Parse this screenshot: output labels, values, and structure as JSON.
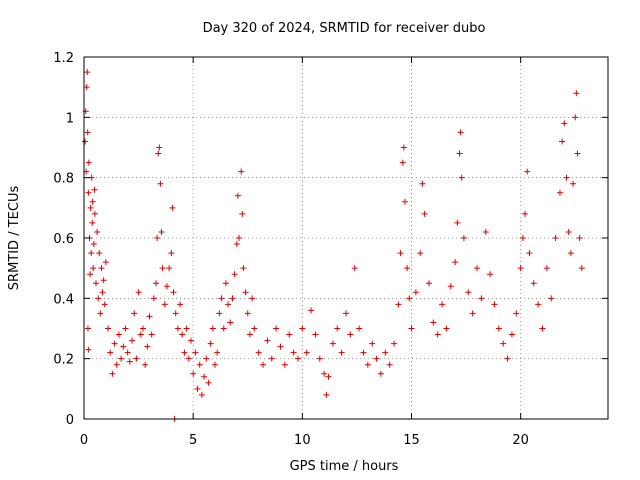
{
  "chart_data": {
    "type": "scatter",
    "title": "Day 320 of 2024, SRMTID for receiver dubo",
    "xlabel": "GPS time / hours",
    "ylabel": "SRMTID / TECUs",
    "xlim": [
      0,
      24
    ],
    "ylim": [
      0,
      1.2
    ],
    "xticks": [
      0,
      5,
      10,
      15,
      20
    ],
    "yticks": [
      0,
      0.2,
      0.4,
      0.6,
      0.8,
      1,
      1.2
    ],
    "xtick_labels": [
      "0",
      "5",
      "10",
      "15",
      "20"
    ],
    "ytick_labels": [
      "0",
      "0.2",
      "0.4",
      "0.6",
      "0.8",
      "1",
      "1.2"
    ],
    "grid": true,
    "marker": "+",
    "series_color": "#e00000",
    "series": [
      {
        "name": "SRMTID",
        "points": [
          [
            0.05,
            0.92
          ],
          [
            0.08,
            1.02
          ],
          [
            0.1,
            0.82
          ],
          [
            0.12,
            1.1
          ],
          [
            0.15,
            1.15
          ],
          [
            0.17,
            0.95
          ],
          [
            0.2,
            0.75
          ],
          [
            0.22,
            0.85
          ],
          [
            0.25,
            0.6
          ],
          [
            0.28,
            0.48
          ],
          [
            0.3,
            0.7
          ],
          [
            0.33,
            0.55
          ],
          [
            0.35,
            0.8
          ],
          [
            0.38,
            0.65
          ],
          [
            0.4,
            0.72
          ],
          [
            0.42,
            0.5
          ],
          [
            0.45,
            0.58
          ],
          [
            0.48,
            0.76
          ],
          [
            0.5,
            0.68
          ],
          [
            0.55,
            0.45
          ],
          [
            0.6,
            0.62
          ],
          [
            0.65,
            0.4
          ],
          [
            0.7,
            0.55
          ],
          [
            0.75,
            0.35
          ],
          [
            0.8,
            0.5
          ],
          [
            0.85,
            0.42
          ],
          [
            0.9,
            0.46
          ],
          [
            0.95,
            0.38
          ],
          [
            1.0,
            0.52
          ],
          [
            0.2,
            0.23
          ],
          [
            0.18,
            0.3
          ],
          [
            1.1,
            0.3
          ],
          [
            1.2,
            0.22
          ],
          [
            1.3,
            0.15
          ],
          [
            1.4,
            0.25
          ],
          [
            1.5,
            0.18
          ],
          [
            1.6,
            0.28
          ],
          [
            1.7,
            0.2
          ],
          [
            1.8,
            0.24
          ],
          [
            1.9,
            0.3
          ],
          [
            2.0,
            0.22
          ],
          [
            2.1,
            0.19
          ],
          [
            2.2,
            0.26
          ],
          [
            2.3,
            0.35
          ],
          [
            2.4,
            0.2
          ],
          [
            2.5,
            0.42
          ],
          [
            2.6,
            0.28
          ],
          [
            2.7,
            0.3
          ],
          [
            2.8,
            0.18
          ],
          [
            2.9,
            0.24
          ],
          [
            3.0,
            0.34
          ],
          [
            3.1,
            0.28
          ],
          [
            3.2,
            0.4
          ],
          [
            3.3,
            0.45
          ],
          [
            3.35,
            0.6
          ],
          [
            3.4,
            0.88
          ],
          [
            3.45,
            0.9
          ],
          [
            3.5,
            0.78
          ],
          [
            3.55,
            0.62
          ],
          [
            3.6,
            0.5
          ],
          [
            3.7,
            0.38
          ],
          [
            3.8,
            0.44
          ],
          [
            3.9,
            0.5
          ],
          [
            4.0,
            0.55
          ],
          [
            4.05,
            0.7
          ],
          [
            4.1,
            0.42
          ],
          [
            4.15,
            0.0
          ],
          [
            4.2,
            0.35
          ],
          [
            4.3,
            0.3
          ],
          [
            4.4,
            0.38
          ],
          [
            4.5,
            0.28
          ],
          [
            4.6,
            0.22
          ],
          [
            4.7,
            0.3
          ],
          [
            4.8,
            0.2
          ],
          [
            4.9,
            0.26
          ],
          [
            5.0,
            0.15
          ],
          [
            5.1,
            0.22
          ],
          [
            5.2,
            0.1
          ],
          [
            5.3,
            0.18
          ],
          [
            5.4,
            0.08
          ],
          [
            5.5,
            0.14
          ],
          [
            5.6,
            0.2
          ],
          [
            5.7,
            0.12
          ],
          [
            5.8,
            0.25
          ],
          [
            5.9,
            0.3
          ],
          [
            6.0,
            0.18
          ],
          [
            6.1,
            0.22
          ],
          [
            6.2,
            0.35
          ],
          [
            6.3,
            0.4
          ],
          [
            6.4,
            0.3
          ],
          [
            6.5,
            0.45
          ],
          [
            6.6,
            0.38
          ],
          [
            6.7,
            0.32
          ],
          [
            6.8,
            0.4
          ],
          [
            6.9,
            0.48
          ],
          [
            7.0,
            0.58
          ],
          [
            7.05,
            0.74
          ],
          [
            7.1,
            0.6
          ],
          [
            7.2,
            0.82
          ],
          [
            7.25,
            0.68
          ],
          [
            7.3,
            0.5
          ],
          [
            7.4,
            0.42
          ],
          [
            7.5,
            0.35
          ],
          [
            7.6,
            0.28
          ],
          [
            7.7,
            0.4
          ],
          [
            7.8,
            0.3
          ],
          [
            8.0,
            0.22
          ],
          [
            8.2,
            0.18
          ],
          [
            8.4,
            0.26
          ],
          [
            8.6,
            0.2
          ],
          [
            8.8,
            0.3
          ],
          [
            9.0,
            0.24
          ],
          [
            9.2,
            0.18
          ],
          [
            9.4,
            0.28
          ],
          [
            9.6,
            0.22
          ],
          [
            9.8,
            0.2
          ],
          [
            10.0,
            0.3
          ],
          [
            10.2,
            0.22
          ],
          [
            10.4,
            0.36
          ],
          [
            10.6,
            0.28
          ],
          [
            10.8,
            0.2
          ],
          [
            11.0,
            0.15
          ],
          [
            11.1,
            0.08
          ],
          [
            11.2,
            0.14
          ],
          [
            11.4,
            0.25
          ],
          [
            11.6,
            0.3
          ],
          [
            11.8,
            0.22
          ],
          [
            12.0,
            0.35
          ],
          [
            12.2,
            0.28
          ],
          [
            12.4,
            0.5
          ],
          [
            12.6,
            0.3
          ],
          [
            12.8,
            0.22
          ],
          [
            13.0,
            0.18
          ],
          [
            13.2,
            0.25
          ],
          [
            13.4,
            0.2
          ],
          [
            13.6,
            0.15
          ],
          [
            13.8,
            0.22
          ],
          [
            14.0,
            0.18
          ],
          [
            14.2,
            0.25
          ],
          [
            14.4,
            0.38
          ],
          [
            14.5,
            0.55
          ],
          [
            14.6,
            0.85
          ],
          [
            14.65,
            0.9
          ],
          [
            14.7,
            0.72
          ],
          [
            14.8,
            0.5
          ],
          [
            14.9,
            0.4
          ],
          [
            15.0,
            0.3
          ],
          [
            15.2,
            0.42
          ],
          [
            15.4,
            0.55
          ],
          [
            15.5,
            0.78
          ],
          [
            15.6,
            0.68
          ],
          [
            15.8,
            0.45
          ],
          [
            16.0,
            0.32
          ],
          [
            16.2,
            0.28
          ],
          [
            16.4,
            0.38
          ],
          [
            16.6,
            0.3
          ],
          [
            16.8,
            0.44
          ],
          [
            17.0,
            0.52
          ],
          [
            17.1,
            0.65
          ],
          [
            17.2,
            0.88
          ],
          [
            17.25,
            0.95
          ],
          [
            17.3,
            0.8
          ],
          [
            17.4,
            0.6
          ],
          [
            17.6,
            0.42
          ],
          [
            17.8,
            0.35
          ],
          [
            18.0,
            0.5
          ],
          [
            18.2,
            0.4
          ],
          [
            18.4,
            0.62
          ],
          [
            18.6,
            0.48
          ],
          [
            18.8,
            0.38
          ],
          [
            19.0,
            0.3
          ],
          [
            19.2,
            0.25
          ],
          [
            19.4,
            0.2
          ],
          [
            19.6,
            0.28
          ],
          [
            19.8,
            0.35
          ],
          [
            20.0,
            0.5
          ],
          [
            20.1,
            0.6
          ],
          [
            20.2,
            0.68
          ],
          [
            20.3,
            0.82
          ],
          [
            20.4,
            0.55
          ],
          [
            20.6,
            0.45
          ],
          [
            20.8,
            0.38
          ],
          [
            21.0,
            0.3
          ],
          [
            21.2,
            0.5
          ],
          [
            21.4,
            0.4
          ],
          [
            21.6,
            0.6
          ],
          [
            21.8,
            0.75
          ],
          [
            21.9,
            0.92
          ],
          [
            22.0,
            0.98
          ],
          [
            22.1,
            0.8
          ],
          [
            22.2,
            0.62
          ],
          [
            22.3,
            0.55
          ],
          [
            22.4,
            0.78
          ],
          [
            22.5,
            1.0
          ],
          [
            22.55,
            1.08
          ],
          [
            22.6,
            0.88
          ],
          [
            22.7,
            0.6
          ],
          [
            22.8,
            0.5
          ]
        ]
      }
    ]
  }
}
